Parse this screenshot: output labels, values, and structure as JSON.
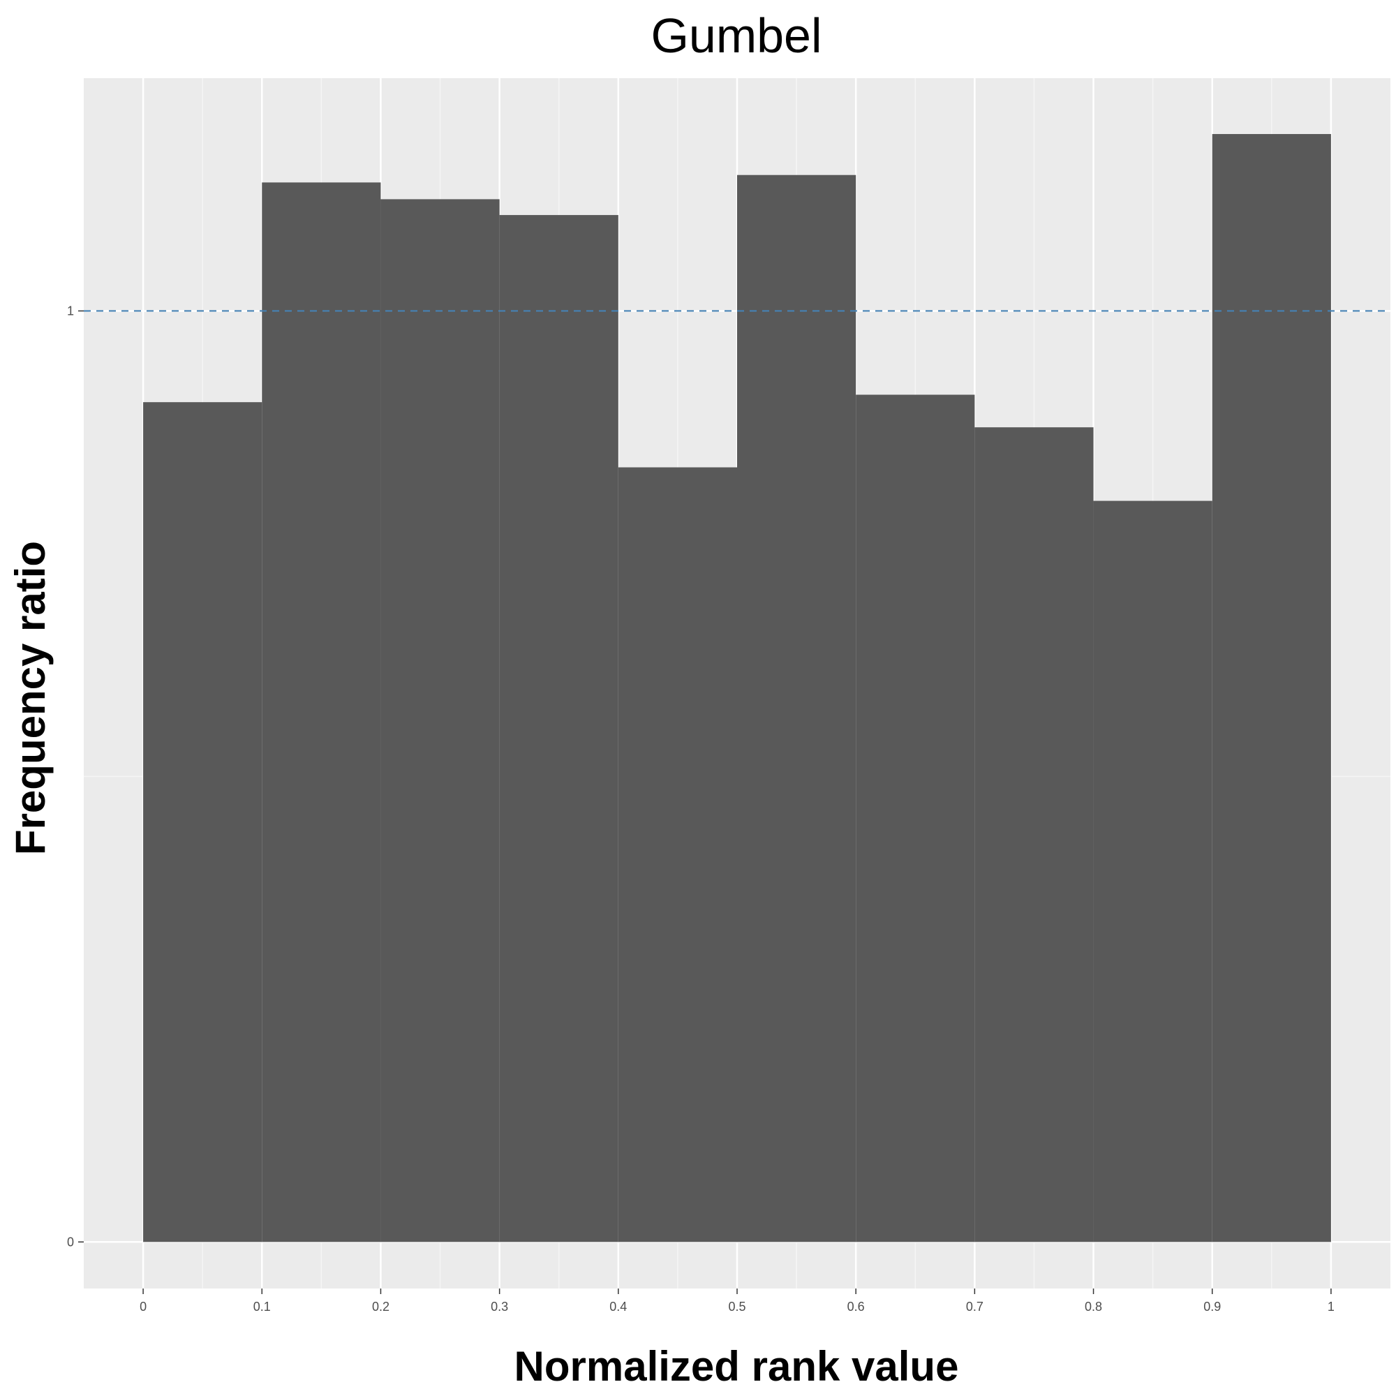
{
  "chart_data": {
    "type": "bar",
    "title": "Gumbel",
    "xlabel": "Normalized rank value",
    "ylabel": "Frequency ratio",
    "bin_edges": [
      0,
      0.1,
      0.2,
      0.3,
      0.4,
      0.5,
      0.6,
      0.7,
      0.8,
      0.9,
      1
    ],
    "values": [
      0.902,
      1.138,
      1.12,
      1.103,
      0.832,
      1.146,
      0.91,
      0.875,
      0.796,
      1.19
    ],
    "reference_line": {
      "y": 1,
      "style": "dashed",
      "color": "#4682b4"
    },
    "xlim": [
      -0.05,
      1.05
    ],
    "ylim": [
      -0.05,
      1.25
    ],
    "x_ticks": [
      {
        "value": 0,
        "label": "0"
      },
      {
        "value": 0.1,
        "label": "0.1"
      },
      {
        "value": 0.2,
        "label": "0.2"
      },
      {
        "value": 0.3,
        "label": "0.3"
      },
      {
        "value": 0.4,
        "label": "0.4"
      },
      {
        "value": 0.5,
        "label": "0.5"
      },
      {
        "value": 0.6,
        "label": "0.6"
      },
      {
        "value": 0.7,
        "label": "0.7"
      },
      {
        "value": 0.8,
        "label": "0.8"
      },
      {
        "value": 0.9,
        "label": "0.9"
      },
      {
        "value": 1,
        "label": "1"
      }
    ],
    "y_ticks": [
      {
        "value": 0,
        "label": "0"
      },
      {
        "value": 1,
        "label": "1"
      }
    ],
    "grid": true,
    "legend": "none",
    "colors": {
      "bar_fill": "#595959",
      "panel_background": "#ebebeb",
      "grid_major": "#ffffff",
      "grid_minor": "#f5f5f5",
      "tick_mark": "#333333"
    }
  }
}
